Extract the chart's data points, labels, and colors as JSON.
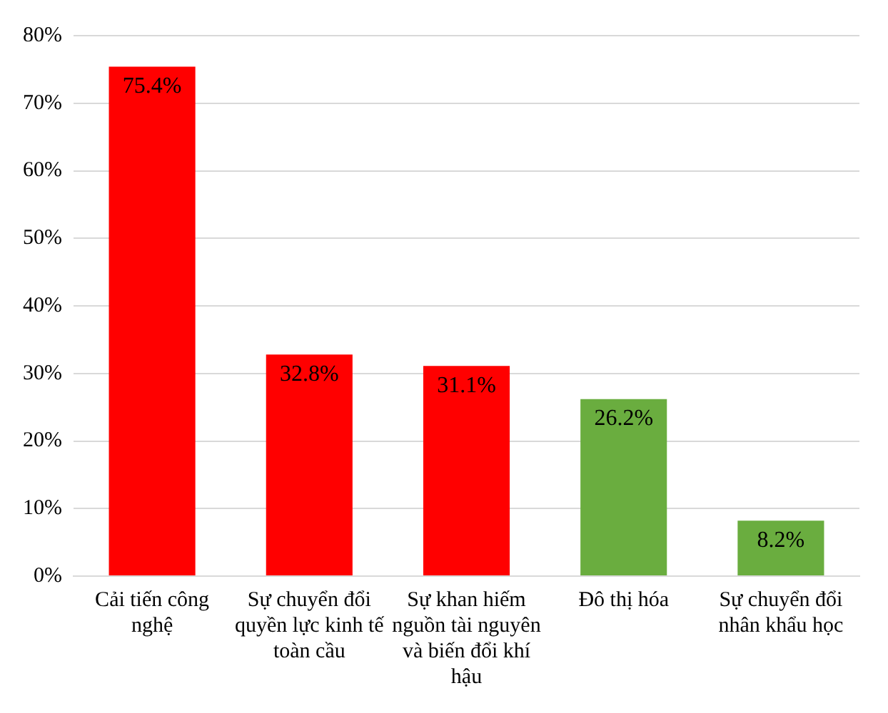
{
  "chart_data": {
    "type": "bar",
    "categories": [
      "Cải tiến công nghệ",
      "Sự chuyển đổi quyền lực kinh tế toàn cầu",
      "Sự khan hiếm nguồn tài nguyên và biến đổi khí hậu",
      "Đô thị hóa",
      "Sự chuyển đổi nhân khẩu học"
    ],
    "values": [
      75.4,
      32.8,
      31.1,
      26.2,
      8.2
    ],
    "colors": [
      "#ff0000",
      "#ff0000",
      "#ff0000",
      "#6aad3f",
      "#6aad3f"
    ],
    "value_labels": [
      "75.4%",
      "32.8%",
      "31.1%",
      "26.2%",
      "8.2%"
    ],
    "ylim": [
      0,
      80
    ],
    "yticks": [
      {
        "value": 0,
        "label": "0%"
      },
      {
        "value": 10,
        "label": "10%"
      },
      {
        "value": 20,
        "label": "20%"
      },
      {
        "value": 30,
        "label": "30%"
      },
      {
        "value": 40,
        "label": "40%"
      },
      {
        "value": 50,
        "label": "50%"
      },
      {
        "value": 60,
        "label": "60%"
      },
      {
        "value": 70,
        "label": "70%"
      },
      {
        "value": 80,
        "label": "80%"
      }
    ],
    "grid": "y",
    "legend": false
  }
}
